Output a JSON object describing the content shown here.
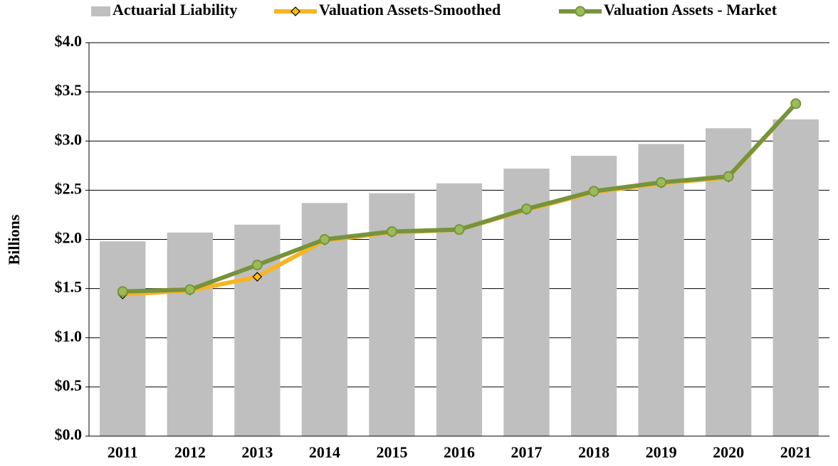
{
  "chart_data": {
    "type": "bar",
    "y_label": "Billions",
    "categories": [
      "2011",
      "2012",
      "2013",
      "2014",
      "2015",
      "2016",
      "2017",
      "2018",
      "2019",
      "2020",
      "2021"
    ],
    "series": [
      {
        "name": "Actuarial Liability",
        "type": "bar",
        "color": "#bfbfbf",
        "values": [
          1.98,
          2.07,
          2.15,
          2.37,
          2.47,
          2.57,
          2.72,
          2.85,
          2.97,
          3.13,
          3.22
        ]
      },
      {
        "name": "Valuation Assets-Smoothed",
        "type": "line",
        "marker": "diamond",
        "color": "#f9b423",
        "marker_color": "#ffc000",
        "values": [
          1.44,
          1.48,
          1.62,
          1.99,
          2.07,
          2.1,
          2.3,
          2.48,
          2.57,
          2.63,
          3.38
        ]
      },
      {
        "name": "Valuation Assets - Market",
        "type": "line",
        "marker": "circle",
        "color": "#77933c",
        "marker_color": "#9bbb59",
        "values": [
          1.47,
          1.49,
          1.74,
          2.0,
          2.08,
          2.1,
          2.31,
          2.49,
          2.58,
          2.64,
          3.38
        ]
      }
    ],
    "ylim": [
      0,
      4
    ],
    "yticks": [
      {
        "value": 0,
        "label": "$0.0"
      },
      {
        "value": 0.5,
        "label": "$0.5"
      },
      {
        "value": 1,
        "label": "$1.0"
      },
      {
        "value": 1.5,
        "label": "$1.5"
      },
      {
        "value": 2,
        "label": "$2.0"
      },
      {
        "value": 2.5,
        "label": "$2.5"
      },
      {
        "value": 3,
        "label": "$3.0"
      },
      {
        "value": 3.5,
        "label": "$3.5"
      },
      {
        "value": 4,
        "label": "$4.0"
      }
    ],
    "grid": true,
    "legend": "top"
  }
}
